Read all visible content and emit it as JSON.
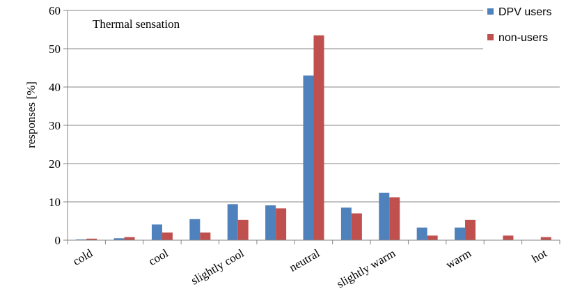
{
  "chart_data": {
    "type": "bar",
    "title": "Thermal sensation",
    "ylabel": "responses [%]",
    "xlabel": "",
    "ylim": [
      0,
      60
    ],
    "yticks": [
      0,
      10,
      20,
      30,
      40,
      50,
      60
    ],
    "categories": [
      "cold",
      "",
      "cool",
      "",
      "slightly cool",
      "",
      "neutral",
      "",
      "slightly warm",
      "",
      "warm",
      "",
      "hot"
    ],
    "series": [
      {
        "name": "DPV users",
        "color": "#4F81BD",
        "values": [
          0.2,
          0.5,
          4.1,
          5.5,
          9.4,
          9.1,
          43.0,
          8.5,
          12.4,
          3.3,
          3.3,
          0,
          0
        ]
      },
      {
        "name": "non-users",
        "color": "#C0504D",
        "values": [
          0.4,
          0.8,
          2.0,
          2.0,
          5.3,
          8.3,
          53.5,
          7.0,
          11.2,
          1.2,
          5.3,
          1.2,
          0.8
        ]
      }
    ],
    "grid": true,
    "legend_position": "top-right"
  }
}
